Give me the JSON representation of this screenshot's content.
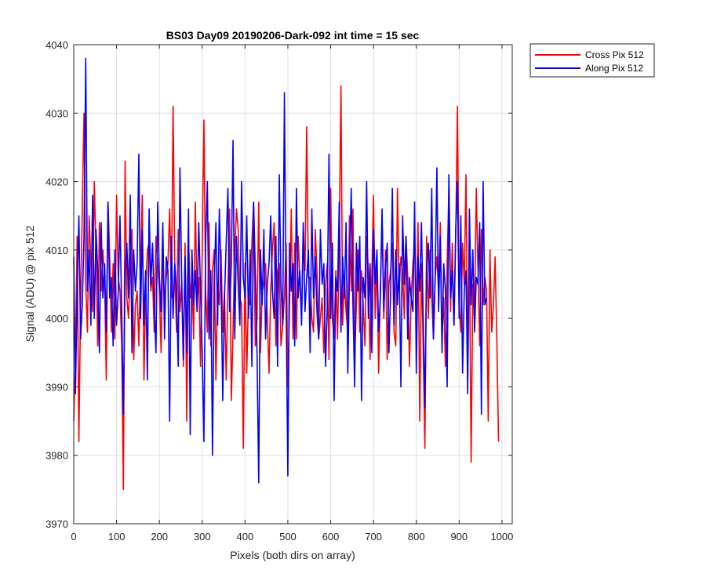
{
  "chart_data": {
    "type": "line",
    "title": "BS03 Day09 20190206-Dark-092 int time = 15 sec",
    "xlabel": "Pixels (both dirs on array)",
    "ylabel": "Signal (ADU) @ pix 512",
    "xlim": [
      0,
      1024
    ],
    "ylim": [
      3970,
      4040
    ],
    "xticks": [
      0,
      100,
      200,
      300,
      400,
      500,
      600,
      700,
      800,
      900,
      1000
    ],
    "yticks": [
      3970,
      3980,
      3990,
      4000,
      4010,
      4020,
      4030,
      4040
    ],
    "grid": true,
    "legend_position": "outside-top-right",
    "x_start": 0,
    "x_step": 4,
    "series": [
      {
        "name": "Cross Pix 512",
        "color": "#ff0000",
        "values": [
          3985,
          3994,
          4012,
          3982,
          4002,
          4016,
          4030,
          4005,
          3998,
          4015,
          4008,
          4001,
          4020,
          4010,
          3996,
          4014,
          4004,
          4010,
          4006,
          3991,
          4017,
          4009,
          3998,
          4008,
          3997,
          4018,
          4006,
          4004,
          3996,
          3975,
          4023,
          4003,
          4000,
          4008,
          4013,
          3994,
          4002,
          4004,
          3996,
          4007,
          4018,
          3991,
          4004,
          4010,
          4011,
          4004,
          4006,
          3998,
          4012,
          4008,
          4004,
          3995,
          4010,
          4002,
          4006,
          4008,
          4016,
          4003,
          4031,
          4007,
          3998,
          4013,
          4001,
          4005,
          3993,
          4011,
          3985,
          4012,
          4003,
          4006,
          3997,
          4017,
          4002,
          4006,
          3993,
          4010,
          4029,
          4004,
          3998,
          4014,
          3996,
          4007,
          4010,
          3991,
          4005,
          4002,
          4010,
          3998,
          4004,
          3991,
          4004,
          4016,
          3988,
          3998,
          4010,
          4016,
          4013,
          4003,
          4002,
          3981,
          4008,
          3992,
          4003,
          4002,
          4011,
          4017,
          3996,
          4000,
          4017,
          3995,
          4004,
          4005,
          4008,
          4000,
          3992,
          4004,
          4010,
          4014,
          3996,
          4007,
          4008,
          3996,
          3999,
          4003,
          4011,
          3990,
          4002,
          4016,
          3997,
          4011,
          3997,
          4012,
          4006,
          4000,
          4013,
          4007,
          4028,
          4006,
          4006,
          4000,
          3998,
          4013,
          4007,
          3997,
          4000,
          4003,
          3995,
          4005,
          4008,
          3994,
          4019,
          4000,
          3997,
          4007,
          3997,
          4011,
          4034,
          3999,
          4006,
          4001,
          3998,
          4015,
          4004,
          4016,
          3994,
          4002,
          4010,
          3998,
          4007,
          4002,
          3996,
          4012,
          4007,
          3994,
          4006,
          4018,
          4000,
          4009,
          3992,
          4004,
          4015,
          4000,
          4010,
          3994,
          4005,
          4007,
          4011,
          3998,
          3996,
          4019,
          4004,
          4009,
          4007,
          4000,
          4012,
          4006,
          3993,
          4003,
          4008,
          4011,
          4000,
          4014,
          3985,
          4008,
          3996,
          3981,
          4012,
          4000,
          4010,
          4003,
          3997,
          4006,
          4009,
          4004,
          4014,
          3997,
          4003,
          3993,
          4008,
          4019,
          4001,
          4011,
          3999,
          4012,
          4031,
          4002,
          3998,
          4011,
          4005,
          4021,
          3994,
          4010,
          3979,
          4005,
          4000,
          4019,
          4007,
          3996,
          4013,
          4002,
          4006,
          4004,
          3985,
          4010,
          3998,
          4002,
          4009,
          3997,
          3982
        ]
      },
      {
        "name": "Along Pix 512",
        "color": "#0000ff",
        "values": [
          4009,
          3989,
          4004,
          4015,
          3997,
          4002,
          4012,
          4038,
          4004,
          4010,
          3999,
          4018,
          4000,
          4013,
          4007,
          3995,
          4014,
          4003,
          4008,
          3998,
          4017,
          4003,
          4006,
          3996,
          4010,
          3999,
          4004,
          4015,
          4001,
          3986,
          4007,
          4011,
          4003,
          4018,
          3995,
          4010,
          4004,
          4008,
          4024,
          4000,
          4013,
          3999,
          4007,
          3991,
          4016,
          4005,
          4011,
          4002,
          3995,
          4017,
          4006,
          4001,
          4014,
          3997,
          4009,
          4007,
          3985,
          4012,
          4000,
          4008,
          4004,
          3993,
          4022,
          4006,
          3994,
          4009,
          3995,
          4016,
          3983,
          4010,
          4002,
          4007,
          4001,
          4014,
          4004,
          3995,
          3982,
          4011,
          4020,
          3997,
          4007,
          3980,
          4005,
          4014,
          3999,
          4016,
          4006,
          3988,
          4003,
          4011,
          4019,
          4001,
          4008,
          4026,
          3997,
          4012,
          4005,
          3999,
          4020,
          4006,
          4003,
          4015,
          4000,
          4010,
          3993,
          4017,
          4007,
          3995,
          3976,
          4010,
          4002,
          4013,
          3997,
          4005,
          4008,
          4015,
          4004,
          4000,
          4012,
          3993,
          4021,
          4005,
          3999,
          4033,
          4002,
          3977,
          4011,
          4004,
          4008,
          3996,
          4019,
          4003,
          4007,
          3999,
          4014,
          4001,
          4006,
          4010,
          3995,
          4016,
          4003,
          4009,
          4001,
          3997,
          4013,
          4005,
          4008,
          3993,
          4002,
          4024,
          4000,
          4011,
          3988,
          4006,
          4004,
          4017,
          3998,
          4009,
          4003,
          4014,
          3992,
          4007,
          4019,
          4002,
          3990,
          4011,
          4004,
          4012,
          3988,
          4006,
          4003,
          4020,
          4000,
          4008,
          3995,
          4013,
          4005,
          4010,
          3998,
          4003,
          4016,
          4001,
          4007,
          4011,
          3995,
          4004,
          4019,
          3999,
          4010,
          4002,
          4008,
          3990,
          4015,
          4005,
          4012,
          3997,
          4006,
          4003,
          4001,
          4017,
          3992,
          4009,
          4004,
          4014,
          4000,
          3987,
          4007,
          4011,
          4003,
          4019,
          3997,
          4006,
          4022,
          4001,
          4012,
          3995,
          4008,
          4004,
          3990,
          4021,
          4003,
          4007,
          3999,
          4013,
          4020,
          4000,
          4015,
          3992,
          4004,
          4007,
          3989,
          4016,
          4002,
          4010,
          3998,
          4006,
          4005,
          4014,
          3986,
          4020,
          4002,
          4003
        ]
      }
    ]
  }
}
